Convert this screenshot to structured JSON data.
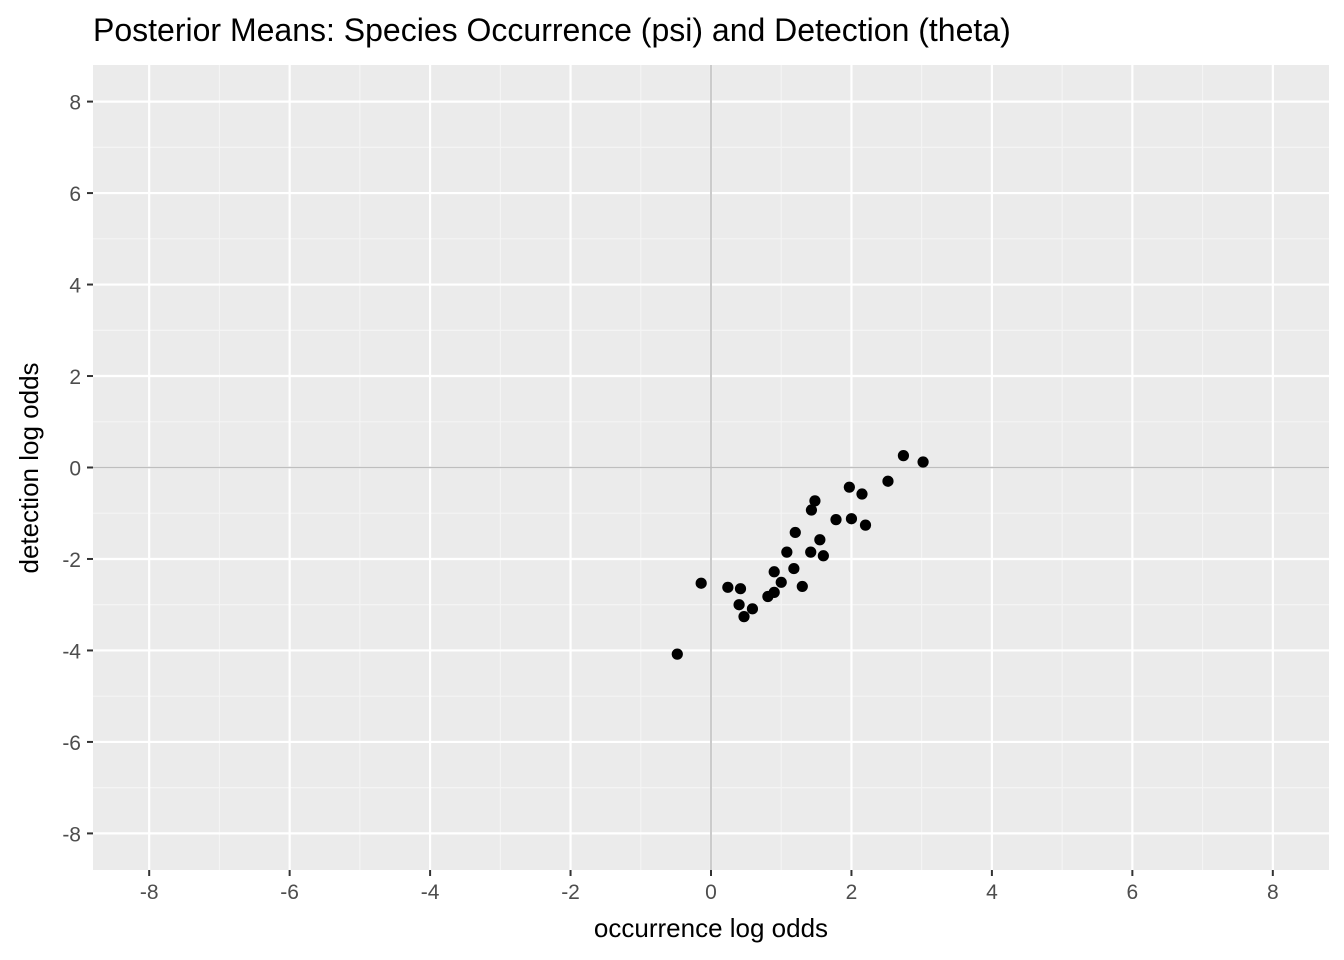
{
  "chart_data": {
    "type": "scatter",
    "title": "Posterior Means: Species Occurrence (psi) and Detection (theta)",
    "xlabel": "occurrence log odds",
    "ylabel": "detection log odds",
    "xlim": [
      -8.8,
      8.8
    ],
    "ylim": [
      -8.8,
      8.8
    ],
    "x_ticks": [
      -8,
      -6,
      -4,
      -2,
      0,
      2,
      4,
      6,
      8
    ],
    "y_ticks": [
      -8,
      -6,
      -4,
      -2,
      0,
      2,
      4,
      6,
      8
    ],
    "x_tick_labels": [
      "-8",
      "-6",
      "-4",
      "-2",
      "0",
      "2",
      "4",
      "6",
      "8"
    ],
    "y_tick_labels": [
      "-8",
      "-6",
      "-4",
      "-2",
      "0",
      "2",
      "4",
      "6",
      "8"
    ],
    "reference_lines": {
      "x": 0,
      "y": 0
    },
    "grid": true,
    "colors": {
      "panel": "#ebebeb",
      "grid_major": "#ffffff",
      "grid_minor": "#f5f5f5",
      "reference": "#bebebe",
      "point": "#000000",
      "tick": "#333333"
    },
    "points": [
      {
        "x": -0.48,
        "y": -4.08
      },
      {
        "x": -0.14,
        "y": -2.53
      },
      {
        "x": 0.24,
        "y": -2.62
      },
      {
        "x": 0.42,
        "y": -2.65
      },
      {
        "x": 0.4,
        "y": -3.0
      },
      {
        "x": 0.47,
        "y": -3.26
      },
      {
        "x": 0.59,
        "y": -3.09
      },
      {
        "x": 0.81,
        "y": -2.82
      },
      {
        "x": 0.9,
        "y": -2.73
      },
      {
        "x": 0.9,
        "y": -2.28
      },
      {
        "x": 1.0,
        "y": -2.51
      },
      {
        "x": 1.08,
        "y": -1.85
      },
      {
        "x": 1.18,
        "y": -2.21
      },
      {
        "x": 1.2,
        "y": -1.42
      },
      {
        "x": 1.3,
        "y": -2.6
      },
      {
        "x": 1.42,
        "y": -1.85
      },
      {
        "x": 1.43,
        "y": -0.93
      },
      {
        "x": 1.48,
        "y": -0.73
      },
      {
        "x": 1.55,
        "y": -1.58
      },
      {
        "x": 1.6,
        "y": -1.93
      },
      {
        "x": 1.78,
        "y": -1.14
      },
      {
        "x": 1.97,
        "y": -0.43
      },
      {
        "x": 2.0,
        "y": -1.12
      },
      {
        "x": 2.15,
        "y": -0.58
      },
      {
        "x": 2.2,
        "y": -1.26
      },
      {
        "x": 2.52,
        "y": -0.3
      },
      {
        "x": 2.74,
        "y": 0.26
      },
      {
        "x": 3.02,
        "y": 0.12
      }
    ]
  }
}
